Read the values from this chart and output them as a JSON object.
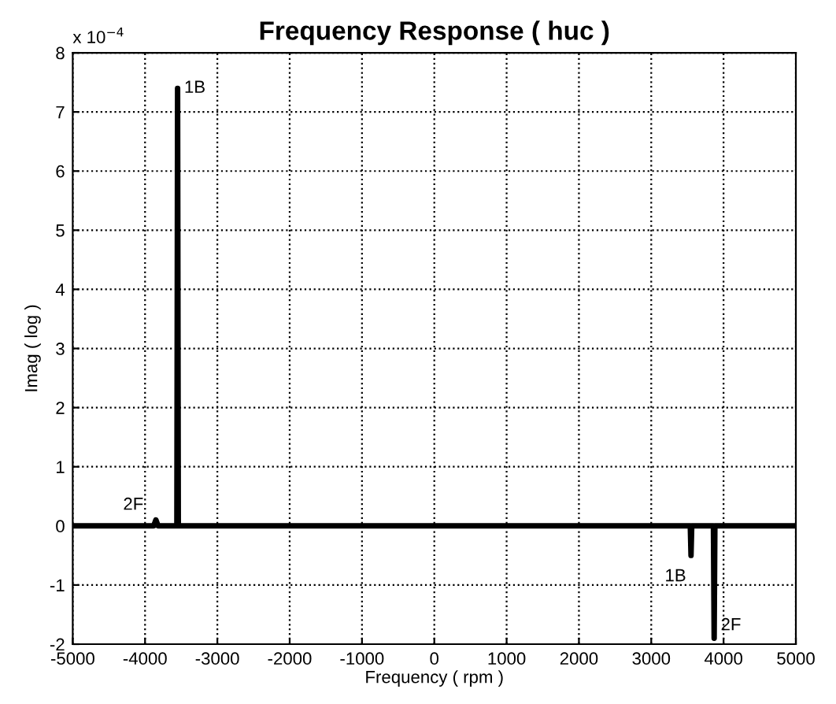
{
  "chart_data": {
    "type": "line",
    "title": "Frequency Response ( huc )",
    "xlabel": "Frequency ( rpm )",
    "ylabel": "Imag ( log )",
    "series": [
      {
        "color": "#000000",
        "x": [
          -5000,
          -3880,
          -3850,
          -3820,
          -3560,
          -3550,
          -3540,
          3540,
          3550,
          3560,
          3860,
          3870,
          3880,
          5000
        ],
        "values": [
          0,
          0,
          0.1,
          0,
          0,
          7.4,
          0,
          0,
          -0.5,
          0,
          0,
          -1.9,
          0,
          0
        ]
      }
    ],
    "annotations": [
      "x 10$^{−4}$",
      {
        "text": "1B",
        "x": -3550,
        "y": 7.4
      },
      {
        "text": "2F",
        "x": -3850,
        "y": 0.1
      },
      {
        "text": "1B",
        "x": 3550,
        "y": -0.5
      },
      {
        "text": "2F",
        "x": 3870,
        "y": -1.9
      }
    ],
    "xlim": [
      -5000,
      5000
    ],
    "xticks": [
      -5000,
      -4000,
      -3000,
      -2000,
      -1000,
      0,
      1000,
      2000,
      3000,
      4000,
      5000
    ],
    "ylim": [
      -2,
      8
    ],
    "yticks": [
      -2,
      -1,
      0,
      1,
      2,
      3,
      4,
      5,
      6,
      7,
      8
    ],
    "grid": true,
    "line_style": "solid",
    "marker": "none"
  }
}
